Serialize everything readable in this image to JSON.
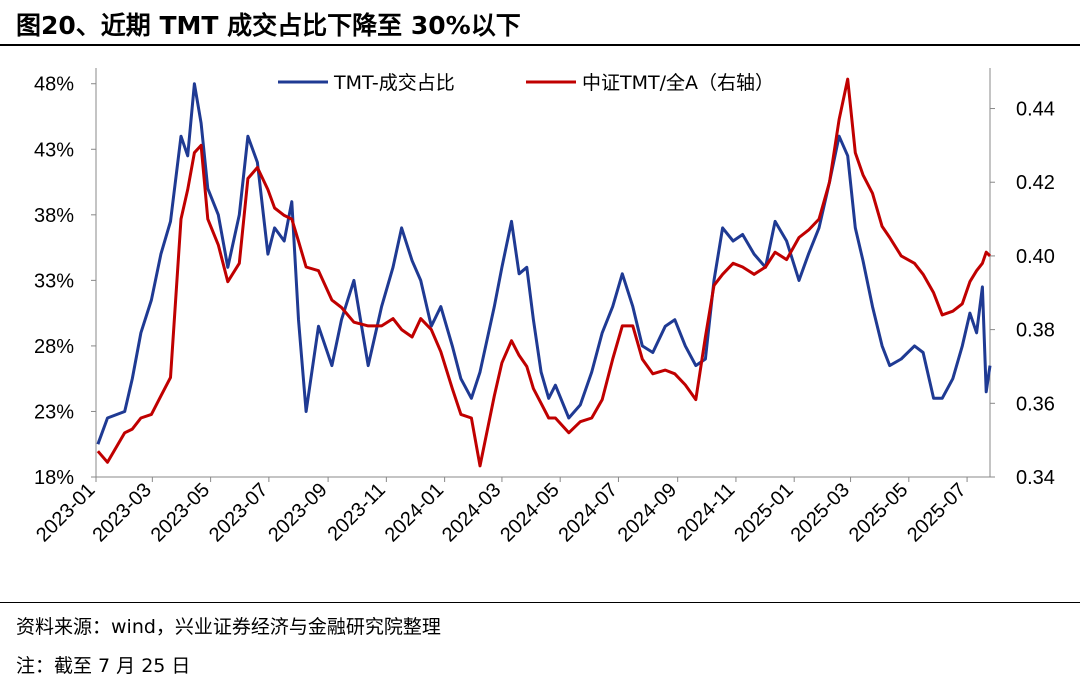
{
  "header": {
    "title": "图20、近期 TMT 成交占比下降至 30%以下"
  },
  "footer": {
    "source": "资料来源：wind，兴业证券经济与金融研究院整理",
    "note": "注：截至 7 月 25 日"
  },
  "colors": {
    "tmt_share": "#1f3a93",
    "tmt_index_ratio": "#c00000"
  },
  "chart_data": {
    "type": "line",
    "title": "近期 TMT 成交占比下降至 30%以下",
    "x_ticks": [
      "2023-01",
      "2023-03",
      "2023-05",
      "2023-07",
      "2023-09",
      "2023-11",
      "2024-01",
      "2024-03",
      "2024-05",
      "2024-07",
      "2024-09",
      "2024-11",
      "2025-01",
      "2025-03",
      "2025-05",
      "2025-07"
    ],
    "x_range": [
      "2023-01-01",
      "2025-07-25"
    ],
    "y_left": {
      "ticks": [
        "48%",
        "43%",
        "38%",
        "33%",
        "28%",
        "23%",
        "18%"
      ],
      "range": [
        18,
        49.2
      ],
      "unit": "%"
    },
    "y_right": {
      "ticks": [
        "0.44",
        "0.42",
        "0.40",
        "0.38",
        "0.36",
        "0.34"
      ],
      "range": [
        0.34,
        0.451
      ]
    },
    "legend_position": "top-center",
    "grid": false,
    "series": [
      {
        "name": "TMT-成交占比",
        "axis": "left",
        "points": [
          [
            "2023-01-03",
            20.5
          ],
          [
            "2023-01-13",
            22.5
          ],
          [
            "2023-01-31",
            23.0
          ],
          [
            "2023-02-08",
            25.5
          ],
          [
            "2023-02-17",
            29.0
          ],
          [
            "2023-02-28",
            31.5
          ],
          [
            "2023-03-10",
            35.0
          ],
          [
            "2023-03-20",
            37.5
          ],
          [
            "2023-03-31",
            44.0
          ],
          [
            "2023-04-07",
            42.5
          ],
          [
            "2023-04-14",
            48.0
          ],
          [
            "2023-04-21",
            45.0
          ],
          [
            "2023-04-28",
            40.0
          ],
          [
            "2023-05-09",
            38.0
          ],
          [
            "2023-05-19",
            34.0
          ],
          [
            "2023-05-31",
            38.0
          ],
          [
            "2023-06-09",
            44.0
          ],
          [
            "2023-06-19",
            42.0
          ],
          [
            "2023-06-30",
            35.0
          ],
          [
            "2023-07-07",
            37.0
          ],
          [
            "2023-07-17",
            36.0
          ],
          [
            "2023-07-25",
            39.0
          ],
          [
            "2023-08-01",
            30.0
          ],
          [
            "2023-08-09",
            23.0
          ],
          [
            "2023-08-22",
            29.5
          ],
          [
            "2023-09-05",
            26.5
          ],
          [
            "2023-09-15",
            30.0
          ],
          [
            "2023-09-28",
            33.0
          ],
          [
            "2023-10-13",
            26.5
          ],
          [
            "2023-10-27",
            31.0
          ],
          [
            "2023-11-08",
            34.0
          ],
          [
            "2023-11-17",
            37.0
          ],
          [
            "2023-11-28",
            34.5
          ],
          [
            "2023-12-07",
            33.0
          ],
          [
            "2023-12-18",
            29.5
          ],
          [
            "2023-12-28",
            31.0
          ],
          [
            "2024-01-09",
            28.0
          ],
          [
            "2024-01-18",
            25.5
          ],
          [
            "2024-01-29",
            24.0
          ],
          [
            "2024-02-07",
            26.0
          ],
          [
            "2024-02-22",
            31.0
          ],
          [
            "2024-03-01",
            34.0
          ],
          [
            "2024-03-11",
            37.5
          ],
          [
            "2024-03-19",
            33.5
          ],
          [
            "2024-03-27",
            34.0
          ],
          [
            "2024-04-03",
            30.0
          ],
          [
            "2024-04-11",
            26.0
          ],
          [
            "2024-04-19",
            24.0
          ],
          [
            "2024-04-26",
            25.0
          ],
          [
            "2024-05-10",
            22.5
          ],
          [
            "2024-05-22",
            23.5
          ],
          [
            "2024-06-03",
            26.0
          ],
          [
            "2024-06-14",
            29.0
          ],
          [
            "2024-06-25",
            31.0
          ],
          [
            "2024-07-05",
            33.5
          ],
          [
            "2024-07-16",
            31.0
          ],
          [
            "2024-07-26",
            28.0
          ],
          [
            "2024-08-06",
            27.5
          ],
          [
            "2024-08-19",
            29.5
          ],
          [
            "2024-08-29",
            30.0
          ],
          [
            "2024-09-09",
            28.0
          ],
          [
            "2024-09-20",
            26.5
          ],
          [
            "2024-09-30",
            27.0
          ],
          [
            "2024-10-09",
            33.0
          ],
          [
            "2024-10-18",
            37.0
          ],
          [
            "2024-10-29",
            36.0
          ],
          [
            "2024-11-08",
            36.5
          ],
          [
            "2024-11-20",
            35.0
          ],
          [
            "2024-12-02",
            34.0
          ],
          [
            "2024-12-12",
            37.5
          ],
          [
            "2024-12-24",
            36.0
          ],
          [
            "2025-01-06",
            33.0
          ],
          [
            "2025-01-16",
            35.0
          ],
          [
            "2025-01-27",
            37.0
          ],
          [
            "2025-02-07",
            40.5
          ],
          [
            "2025-02-17",
            44.0
          ],
          [
            "2025-02-26",
            42.5
          ],
          [
            "2025-03-06",
            37.0
          ],
          [
            "2025-03-14",
            34.5
          ],
          [
            "2025-03-24",
            31.0
          ],
          [
            "2025-04-03",
            28.0
          ],
          [
            "2025-04-11",
            26.5
          ],
          [
            "2025-04-23",
            27.0
          ],
          [
            "2025-05-07",
            28.0
          ],
          [
            "2025-05-16",
            27.5
          ],
          [
            "2025-05-27",
            24.0
          ],
          [
            "2025-06-05",
            24.0
          ],
          [
            "2025-06-16",
            25.5
          ],
          [
            "2025-06-26",
            28.0
          ],
          [
            "2025-07-04",
            30.5
          ],
          [
            "2025-07-11",
            29.0
          ],
          [
            "2025-07-17",
            32.5
          ],
          [
            "2025-07-21",
            24.5
          ],
          [
            "2025-07-25",
            26.5
          ]
        ]
      },
      {
        "name": "中证TMT/全A（右轴）",
        "axis": "right",
        "points": [
          [
            "2023-01-03",
            0.347
          ],
          [
            "2023-01-13",
            0.344
          ],
          [
            "2023-01-31",
            0.352
          ],
          [
            "2023-02-08",
            0.353
          ],
          [
            "2023-02-17",
            0.356
          ],
          [
            "2023-02-28",
            0.357
          ],
          [
            "2023-03-10",
            0.362
          ],
          [
            "2023-03-20",
            0.367
          ],
          [
            "2023-03-31",
            0.41
          ],
          [
            "2023-04-07",
            0.418
          ],
          [
            "2023-04-14",
            0.428
          ],
          [
            "2023-04-21",
            0.43
          ],
          [
            "2023-04-28",
            0.41
          ],
          [
            "2023-05-09",
            0.403
          ],
          [
            "2023-05-19",
            0.393
          ],
          [
            "2023-05-31",
            0.398
          ],
          [
            "2023-06-09",
            0.421
          ],
          [
            "2023-06-19",
            0.424
          ],
          [
            "2023-06-30",
            0.418
          ],
          [
            "2023-07-07",
            0.413
          ],
          [
            "2023-07-17",
            0.411
          ],
          [
            "2023-07-25",
            0.41
          ],
          [
            "2023-08-01",
            0.404
          ],
          [
            "2023-08-09",
            0.397
          ],
          [
            "2023-08-22",
            0.396
          ],
          [
            "2023-09-05",
            0.388
          ],
          [
            "2023-09-15",
            0.386
          ],
          [
            "2023-09-28",
            0.382
          ],
          [
            "2023-10-13",
            0.381
          ],
          [
            "2023-10-27",
            0.381
          ],
          [
            "2023-11-08",
            0.383
          ],
          [
            "2023-11-17",
            0.38
          ],
          [
            "2023-11-28",
            0.378
          ],
          [
            "2023-12-07",
            0.383
          ],
          [
            "2023-12-18",
            0.38
          ],
          [
            "2023-12-28",
            0.374
          ],
          [
            "2024-01-09",
            0.364
          ],
          [
            "2024-01-18",
            0.357
          ],
          [
            "2024-01-29",
            0.356
          ],
          [
            "2024-02-07",
            0.343
          ],
          [
            "2024-02-22",
            0.362
          ],
          [
            "2024-03-01",
            0.371
          ],
          [
            "2024-03-11",
            0.377
          ],
          [
            "2024-03-19",
            0.373
          ],
          [
            "2024-03-27",
            0.37
          ],
          [
            "2024-04-03",
            0.364
          ],
          [
            "2024-04-11",
            0.36
          ],
          [
            "2024-04-19",
            0.356
          ],
          [
            "2024-04-26",
            0.356
          ],
          [
            "2024-05-10",
            0.352
          ],
          [
            "2024-05-22",
            0.355
          ],
          [
            "2024-06-03",
            0.356
          ],
          [
            "2024-06-14",
            0.361
          ],
          [
            "2024-06-25",
            0.372
          ],
          [
            "2024-07-05",
            0.381
          ],
          [
            "2024-07-16",
            0.381
          ],
          [
            "2024-07-26",
            0.372
          ],
          [
            "2024-08-06",
            0.368
          ],
          [
            "2024-08-19",
            0.369
          ],
          [
            "2024-08-29",
            0.368
          ],
          [
            "2024-09-09",
            0.365
          ],
          [
            "2024-09-20",
            0.361
          ],
          [
            "2024-09-30",
            0.378
          ],
          [
            "2024-10-09",
            0.392
          ],
          [
            "2024-10-18",
            0.395
          ],
          [
            "2024-10-29",
            0.398
          ],
          [
            "2024-11-08",
            0.397
          ],
          [
            "2024-11-20",
            0.395
          ],
          [
            "2024-12-02",
            0.397
          ],
          [
            "2024-12-12",
            0.401
          ],
          [
            "2024-12-24",
            0.399
          ],
          [
            "2025-01-06",
            0.405
          ],
          [
            "2025-01-16",
            0.407
          ],
          [
            "2025-01-27",
            0.41
          ],
          [
            "2025-02-07",
            0.42
          ],
          [
            "2025-02-17",
            0.437
          ],
          [
            "2025-02-26",
            0.448
          ],
          [
            "2025-03-06",
            0.428
          ],
          [
            "2025-03-14",
            0.422
          ],
          [
            "2025-03-24",
            0.417
          ],
          [
            "2025-04-03",
            0.408
          ],
          [
            "2025-04-11",
            0.405
          ],
          [
            "2025-04-23",
            0.4
          ],
          [
            "2025-05-07",
            0.398
          ],
          [
            "2025-05-16",
            0.395
          ],
          [
            "2025-05-27",
            0.39
          ],
          [
            "2025-06-05",
            0.384
          ],
          [
            "2025-06-16",
            0.385
          ],
          [
            "2025-06-26",
            0.387
          ],
          [
            "2025-07-04",
            0.393
          ],
          [
            "2025-07-11",
            0.396
          ],
          [
            "2025-07-17",
            0.398
          ],
          [
            "2025-07-21",
            0.401
          ],
          [
            "2025-07-25",
            0.4
          ]
        ]
      }
    ]
  }
}
